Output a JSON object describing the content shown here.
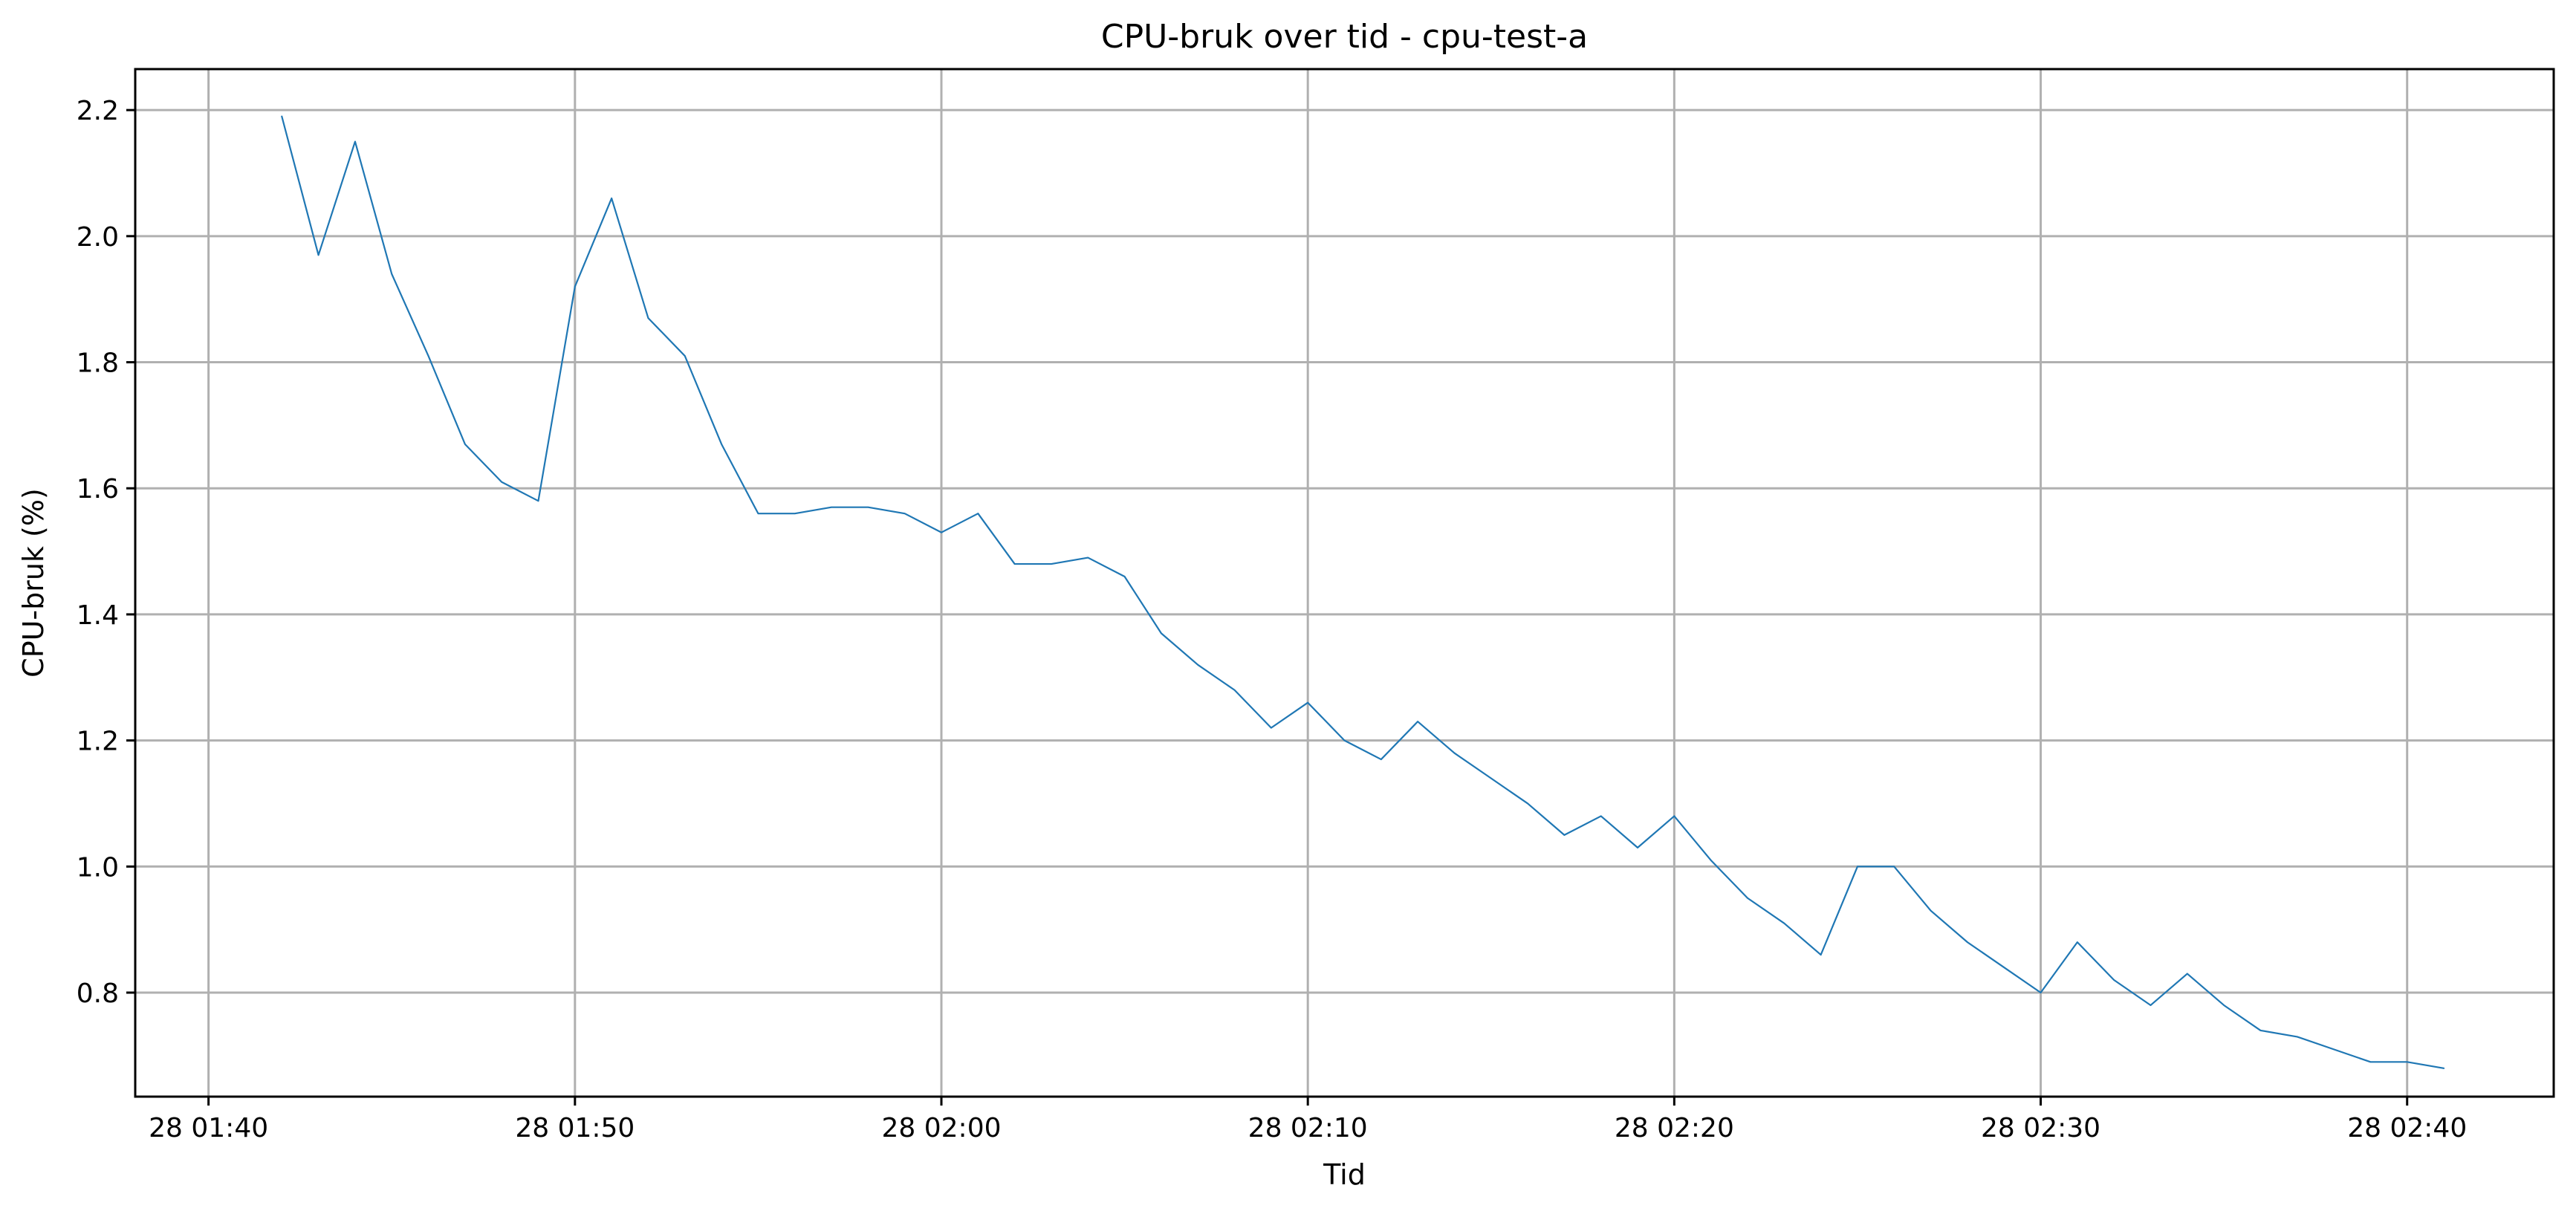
{
  "chart_data": {
    "type": "line",
    "title": "CPU-bruk over tid - cpu-test-a",
    "xlabel": "Tid",
    "ylabel": "CPU-bruk (%)",
    "x_ticks": [
      "28 01:40",
      "28 01:50",
      "28 02:00",
      "28 02:10",
      "28 02:20",
      "28 02:30",
      "28 02:40"
    ],
    "y_ticks": [
      "0.8",
      "1.0",
      "1.2",
      "1.4",
      "1.6",
      "1.8",
      "2.0",
      "2.2"
    ],
    "xlim": [
      "01:38",
      "02:44"
    ],
    "ylim": [
      0.635,
      2.265
    ],
    "grid": true,
    "legend": "none",
    "colors": {
      "series": "#1f77b4",
      "grid": "#b0b0b0",
      "axes": "#000000"
    },
    "series": [
      {
        "x": [
          "01:42",
          "01:43",
          "01:44",
          "01:45",
          "01:46",
          "01:47",
          "01:48",
          "01:49",
          "01:50",
          "01:51",
          "01:52",
          "01:53",
          "01:54",
          "01:55",
          "01:56",
          "01:57",
          "01:58",
          "01:59",
          "02:00",
          "02:01",
          "02:02",
          "02:03",
          "02:04",
          "02:05",
          "02:06",
          "02:07",
          "02:08",
          "02:09",
          "02:10",
          "02:11",
          "02:12",
          "02:13",
          "02:14",
          "02:15",
          "02:16",
          "02:17",
          "02:18",
          "02:19",
          "02:20",
          "02:21",
          "02:22",
          "02:23",
          "02:24",
          "02:25",
          "02:26",
          "02:27",
          "02:28",
          "02:29",
          "02:30",
          "02:31",
          "02:32",
          "02:33",
          "02:34",
          "02:35",
          "02:36",
          "02:37",
          "02:38",
          "02:39",
          "02:40",
          "02:41"
        ],
        "values": [
          2.19,
          1.97,
          2.15,
          1.94,
          1.81,
          1.67,
          1.61,
          1.58,
          1.92,
          2.06,
          1.87,
          1.81,
          1.67,
          1.56,
          1.56,
          1.57,
          1.57,
          1.56,
          1.53,
          1.56,
          1.48,
          1.48,
          1.49,
          1.46,
          1.37,
          1.32,
          1.28,
          1.22,
          1.26,
          1.2,
          1.17,
          1.23,
          1.18,
          1.14,
          1.1,
          1.05,
          1.08,
          1.03,
          1.08,
          1.01,
          0.95,
          0.91,
          0.86,
          1.0,
          1.0,
          0.93,
          0.88,
          0.84,
          0.8,
          0.88,
          0.82,
          0.78,
          0.83,
          0.78,
          0.74,
          0.73,
          0.71,
          0.69,
          0.69,
          0.68
        ]
      }
    ]
  }
}
